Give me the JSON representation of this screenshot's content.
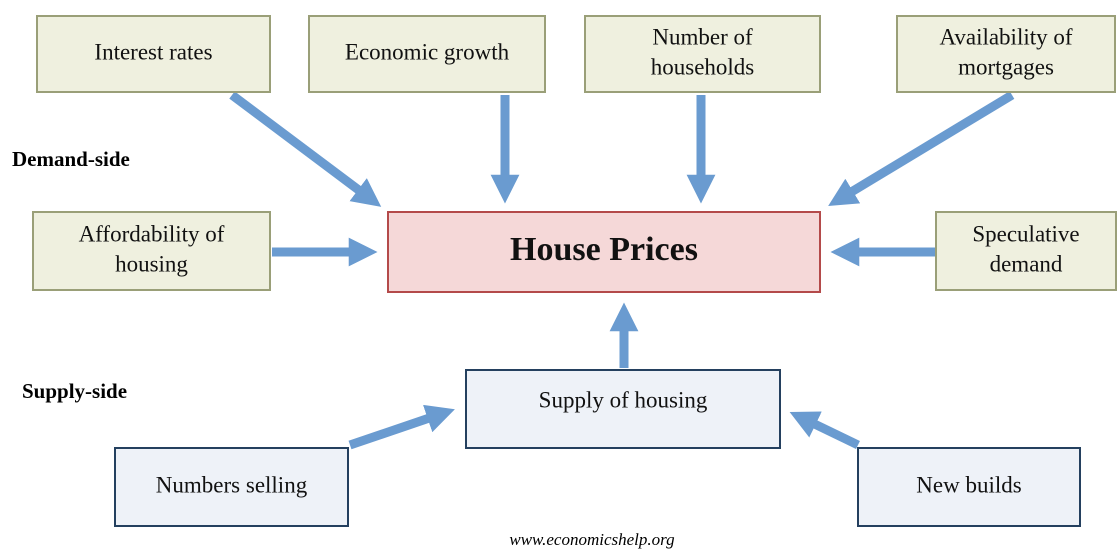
{
  "nodes": [
    {
      "lines": [
        "Interest rates"
      ]
    },
    {
      "lines": [
        "Economic growth"
      ]
    },
    {
      "lines": [
        "Number of",
        "households"
      ]
    },
    {
      "lines": [
        "Availability of",
        "mortgages"
      ]
    },
    {
      "lines": [
        "Affordability of",
        "housing"
      ]
    },
    {
      "lines": [
        "House Prices"
      ]
    },
    {
      "lines": [
        "Speculative",
        "demand"
      ]
    },
    {
      "lines": [
        "Supply of housing"
      ]
    },
    {
      "lines": [
        "Numbers selling"
      ]
    },
    {
      "lines": [
        "New builds"
      ]
    }
  ],
  "side_labels": {
    "demand": "Demand-side",
    "supply": "Supply-side"
  },
  "footer": "www.economicshelp.org"
}
